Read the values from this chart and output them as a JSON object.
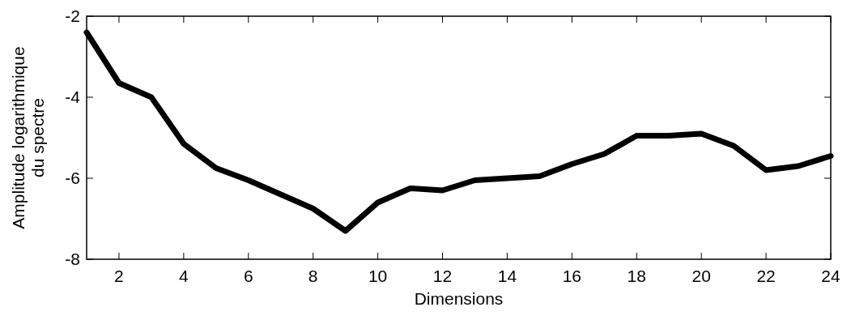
{
  "chart_data": {
    "type": "line",
    "xlabel": "Dimensions",
    "ylabel": "Amplitude logarithmique\ndu spectre",
    "x": [
      1,
      2,
      3,
      4,
      5,
      6,
      7,
      8,
      9,
      10,
      11,
      12,
      13,
      14,
      15,
      16,
      17,
      18,
      19,
      20,
      21,
      22,
      23,
      24
    ],
    "series": [
      {
        "color": "#000000",
        "values": [
          -2.4,
          -3.65,
          -4.0,
          -5.15,
          -5.75,
          -6.05,
          -6.4,
          -6.75,
          -7.3,
          -6.6,
          -6.25,
          -6.3,
          -6.05,
          -6.0,
          -5.95,
          -5.65,
          -5.4,
          -4.95,
          -4.95,
          -4.9,
          -5.2,
          -5.8,
          -5.7,
          -5.45
        ]
      }
    ],
    "xlim": [
      1,
      24
    ],
    "xticks": [
      2,
      4,
      6,
      8,
      10,
      12,
      14,
      16,
      18,
      20,
      22,
      24
    ],
    "ylim": [
      -8,
      -2
    ],
    "yticks": [
      -8,
      -6,
      -4,
      -2
    ],
    "grid": false,
    "marker": "none",
    "line_style": "solid"
  }
}
